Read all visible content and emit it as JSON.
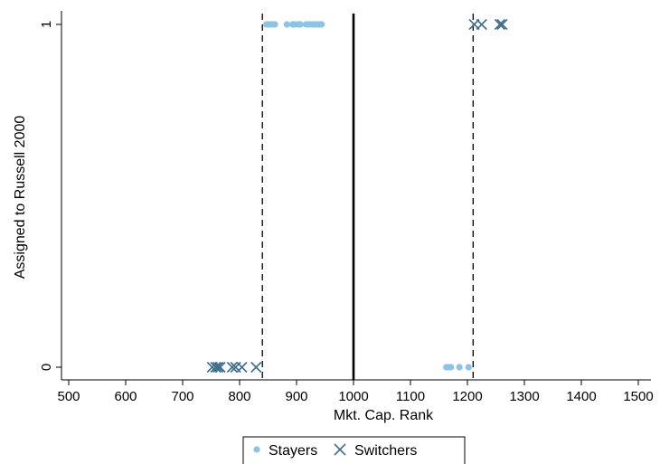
{
  "chart_data": {
    "type": "scatter",
    "xlabel": "Mkt. Cap. Rank",
    "ylabel": "Assigned to Russell 2000",
    "xlim": [
      500,
      1500
    ],
    "ylim": [
      0,
      1
    ],
    "xticks": [
      "500",
      "600",
      "700",
      "800",
      "900",
      "1000",
      "1100",
      "1200",
      "1300",
      "1400",
      "1500"
    ],
    "yticks": [
      "0",
      "1"
    ],
    "grid": false,
    "legend_position": "bottom-center",
    "reference_lines": [
      {
        "x": 840,
        "style": "dashed"
      },
      {
        "x": 1000,
        "style": "solid"
      },
      {
        "x": 1210,
        "style": "dashed"
      }
    ],
    "series": [
      {
        "name": "Stayers",
        "marker": "circle",
        "color": "#8ec3e6",
        "points": [
          [
            847,
            1
          ],
          [
            851,
            1
          ],
          [
            854,
            1
          ],
          [
            858,
            1
          ],
          [
            862,
            1
          ],
          [
            883,
            1
          ],
          [
            893,
            1
          ],
          [
            897,
            1
          ],
          [
            903,
            1
          ],
          [
            907,
            1
          ],
          [
            917,
            1
          ],
          [
            922,
            1
          ],
          [
            927,
            1
          ],
          [
            931,
            1
          ],
          [
            935,
            1
          ],
          [
            938,
            1
          ],
          [
            941,
            1
          ],
          [
            944,
            1
          ],
          [
            1163,
            0
          ],
          [
            1167,
            0
          ],
          [
            1171,
            0
          ],
          [
            1186,
            0
          ],
          [
            1202,
            0
          ]
        ]
      },
      {
        "name": "Switchers",
        "marker": "x",
        "color": "#3f6e8c",
        "points": [
          [
            752,
            0
          ],
          [
            758,
            0
          ],
          [
            762,
            0
          ],
          [
            766,
            0
          ],
          [
            787,
            0
          ],
          [
            793,
            0
          ],
          [
            804,
            0
          ],
          [
            829,
            0
          ],
          [
            1212,
            1
          ],
          [
            1225,
            1
          ],
          [
            1257,
            1
          ],
          [
            1261,
            1
          ]
        ]
      }
    ]
  }
}
